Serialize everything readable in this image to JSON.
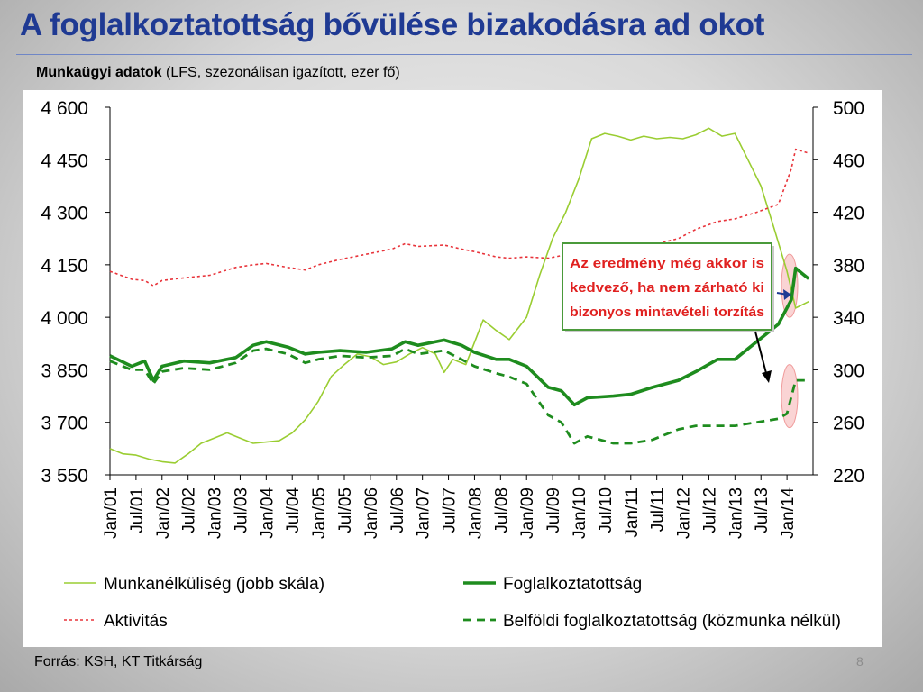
{
  "slide": {
    "title": "A foglalkoztatottság bővülése bizakodásra ad okot",
    "subtitle_bold": "Munkaügyi adatok",
    "subtitle_rest": " (LFS, szezonálisan igazított, ezer fő)",
    "source": "Forrás: KSH, KT Titkárság",
    "page_number": "8"
  },
  "chart_data": {
    "type": "line",
    "title": "",
    "xlabel": "",
    "ylabel": "",
    "x_tick_labels": [
      "Jan/01",
      "Jul/01",
      "Jan/02",
      "Jul/02",
      "Jan/03",
      "Jul/03",
      "Jan/04",
      "Jul/04",
      "Jan/05",
      "Jul/05",
      "Jan/06",
      "Jul/06",
      "Jan/07",
      "Jul/07",
      "Jan/08",
      "Jul/08",
      "Jan/09",
      "Jul/09",
      "Jan/10",
      "Jul/10",
      "Jan/11",
      "Jul/11",
      "Jan/12",
      "Jul/12",
      "Jan/13",
      "Jul/13",
      "Jan/14"
    ],
    "left_axis": {
      "ylim": [
        3550,
        4600
      ],
      "tick_labels": [
        "4 600",
        "4 450",
        "4 300",
        "4 150",
        "4 000",
        "3 850",
        "3 700",
        "3 550"
      ],
      "tick_values": [
        4600,
        4450,
        4300,
        4150,
        4000,
        3850,
        3700,
        3550
      ]
    },
    "right_axis": {
      "ylim": [
        220,
        500
      ],
      "tick_labels": [
        "500",
        "460",
        "420",
        "380",
        "340",
        "300",
        "260",
        "220"
      ],
      "tick_values": [
        500,
        460,
        420,
        380,
        340,
        300,
        260,
        220
      ]
    },
    "series": [
      {
        "name": "Munkanélküliség (jobb skála)",
        "axis": "right",
        "color": "#9acd32",
        "style": "solid",
        "points": [
          [
            "2001-01",
            240
          ],
          [
            "2001-04",
            236
          ],
          [
            "2001-07",
            235
          ],
          [
            "2001-10",
            232
          ],
          [
            "2002-01",
            230
          ],
          [
            "2002-04",
            229
          ],
          [
            "2002-07",
            236
          ],
          [
            "2002-10",
            244
          ],
          [
            "2003-01",
            248
          ],
          [
            "2003-04",
            252
          ],
          [
            "2003-07",
            248
          ],
          [
            "2003-10",
            244
          ],
          [
            "2004-01",
            245
          ],
          [
            "2004-04",
            246
          ],
          [
            "2004-07",
            252
          ],
          [
            "2004-10",
            262
          ],
          [
            "2005-01",
            276
          ],
          [
            "2005-04",
            295
          ],
          [
            "2005-07",
            304
          ],
          [
            "2005-10",
            312
          ],
          [
            "2006-01",
            310
          ],
          [
            "2006-04",
            304
          ],
          [
            "2006-07",
            306
          ],
          [
            "2006-10",
            312
          ],
          [
            "2007-01",
            317
          ],
          [
            "2007-04",
            312
          ],
          [
            "2007-06",
            298
          ],
          [
            "2007-08",
            308
          ],
          [
            "2007-11",
            304
          ],
          [
            "2008-03",
            338
          ],
          [
            "2008-06",
            330
          ],
          [
            "2008-09",
            323
          ],
          [
            "2009-01",
            340
          ],
          [
            "2009-04",
            372
          ],
          [
            "2009-07",
            400
          ],
          [
            "2009-10",
            420
          ],
          [
            "2010-01",
            445
          ],
          [
            "2010-04",
            476
          ],
          [
            "2010-07",
            480
          ],
          [
            "2010-10",
            478
          ],
          [
            "2011-01",
            475
          ],
          [
            "2011-04",
            478
          ],
          [
            "2011-07",
            476
          ],
          [
            "2011-10",
            477
          ],
          [
            "2012-01",
            476
          ],
          [
            "2012-04",
            479
          ],
          [
            "2012-07",
            484
          ],
          [
            "2012-10",
            478
          ],
          [
            "2013-01",
            480
          ],
          [
            "2013-04",
            460
          ],
          [
            "2013-07",
            440
          ],
          [
            "2013-10",
            408
          ],
          [
            "2014-01",
            375
          ],
          [
            "2014-03",
            347
          ],
          [
            "2014-06",
            352
          ]
        ]
      },
      {
        "name": "Foglalkoztatottság",
        "axis": "left",
        "color": "#1e8c1e",
        "style": "solid-thick",
        "points": [
          [
            "2001-01",
            3890
          ],
          [
            "2001-06",
            3860
          ],
          [
            "2001-09",
            3875
          ],
          [
            "2001-11",
            3820
          ],
          [
            "2002-01",
            3860
          ],
          [
            "2002-06",
            3875
          ],
          [
            "2002-12",
            3870
          ],
          [
            "2003-06",
            3885
          ],
          [
            "2003-10",
            3920
          ],
          [
            "2004-01",
            3930
          ],
          [
            "2004-06",
            3915
          ],
          [
            "2004-10",
            3895
          ],
          [
            "2005-01",
            3900
          ],
          [
            "2005-06",
            3905
          ],
          [
            "2005-12",
            3900
          ],
          [
            "2006-06",
            3910
          ],
          [
            "2006-09",
            3930
          ],
          [
            "2006-12",
            3920
          ],
          [
            "2007-06",
            3935
          ],
          [
            "2007-10",
            3920
          ],
          [
            "2008-01",
            3900
          ],
          [
            "2008-06",
            3880
          ],
          [
            "2008-09",
            3880
          ],
          [
            "2009-01",
            3860
          ],
          [
            "2009-06",
            3800
          ],
          [
            "2009-09",
            3790
          ],
          [
            "2009-12",
            3750
          ],
          [
            "2010-03",
            3770
          ],
          [
            "2010-09",
            3775
          ],
          [
            "2011-01",
            3780
          ],
          [
            "2011-06",
            3800
          ],
          [
            "2011-12",
            3820
          ],
          [
            "2012-04",
            3845
          ],
          [
            "2012-09",
            3880
          ],
          [
            "2013-01",
            3880
          ],
          [
            "2013-06",
            3930
          ],
          [
            "2013-11",
            3980
          ],
          [
            "2014-02",
            4050
          ],
          [
            "2014-03",
            4140
          ],
          [
            "2014-06",
            4110
          ]
        ]
      },
      {
        "name": "Aktivitás",
        "axis": "right",
        "color": "#e8333a",
        "style": "dotted",
        "points": [
          [
            "2001-01",
            375
          ],
          [
            "2001-06",
            369
          ],
          [
            "2001-09",
            368
          ],
          [
            "2001-11",
            364
          ],
          [
            "2002-01",
            368
          ],
          [
            "2002-06",
            370
          ],
          [
            "2002-12",
            372
          ],
          [
            "2003-06",
            378
          ],
          [
            "2003-10",
            380
          ],
          [
            "2004-01",
            381
          ],
          [
            "2004-06",
            378
          ],
          [
            "2004-10",
            376
          ],
          [
            "2005-01",
            380
          ],
          [
            "2005-06",
            384
          ],
          [
            "2005-12",
            388
          ],
          [
            "2006-06",
            392
          ],
          [
            "2006-09",
            396
          ],
          [
            "2006-12",
            394
          ],
          [
            "2007-06",
            395
          ],
          [
            "2007-10",
            392
          ],
          [
            "2008-01",
            390
          ],
          [
            "2008-06",
            386
          ],
          [
            "2008-09",
            385
          ],
          [
            "2009-01",
            386
          ],
          [
            "2009-06",
            385
          ],
          [
            "2009-09",
            387
          ],
          [
            "2009-12",
            387
          ],
          [
            "2010-03",
            385
          ],
          [
            "2010-09",
            387
          ],
          [
            "2011-01",
            389
          ],
          [
            "2011-06",
            395
          ],
          [
            "2011-12",
            400
          ],
          [
            "2012-04",
            407
          ],
          [
            "2012-09",
            413
          ],
          [
            "2013-01",
            415
          ],
          [
            "2013-06",
            420
          ],
          [
            "2013-11",
            426
          ],
          [
            "2014-02",
            453
          ],
          [
            "2014-03",
            468
          ],
          [
            "2014-06",
            465
          ]
        ]
      },
      {
        "name": "Belföldi foglalkoztatottság (közmunka nélkül)",
        "axis": "left",
        "color": "#1e8c1e",
        "style": "dashed",
        "points": [
          [
            "2001-01",
            3875
          ],
          [
            "2001-06",
            3850
          ],
          [
            "2001-09",
            3850
          ],
          [
            "2001-11",
            3810
          ],
          [
            "2002-01",
            3845
          ],
          [
            "2002-06",
            3855
          ],
          [
            "2002-12",
            3850
          ],
          [
            "2003-06",
            3870
          ],
          [
            "2003-10",
            3905
          ],
          [
            "2004-01",
            3910
          ],
          [
            "2004-06",
            3895
          ],
          [
            "2004-10",
            3870
          ],
          [
            "2005-01",
            3880
          ],
          [
            "2005-06",
            3890
          ],
          [
            "2005-12",
            3885
          ],
          [
            "2006-06",
            3890
          ],
          [
            "2006-09",
            3910
          ],
          [
            "2006-12",
            3895
          ],
          [
            "2007-06",
            3905
          ],
          [
            "2007-10",
            3880
          ],
          [
            "2008-01",
            3860
          ],
          [
            "2008-06",
            3840
          ],
          [
            "2008-09",
            3830
          ],
          [
            "2009-01",
            3810
          ],
          [
            "2009-06",
            3720
          ],
          [
            "2009-09",
            3700
          ],
          [
            "2009-12",
            3640
          ],
          [
            "2010-03",
            3660
          ],
          [
            "2010-09",
            3640
          ],
          [
            "2011-01",
            3640
          ],
          [
            "2011-06",
            3650
          ],
          [
            "2011-12",
            3680
          ],
          [
            "2012-04",
            3690
          ],
          [
            "2012-09",
            3690
          ],
          [
            "2013-01",
            3690
          ],
          [
            "2013-06",
            3700
          ],
          [
            "2013-11",
            3710
          ],
          [
            "2014-01",
            3725
          ],
          [
            "2014-03",
            3820
          ],
          [
            "2014-06",
            3820
          ]
        ]
      }
    ],
    "legend": {
      "placement": "bottom"
    },
    "grid": false,
    "annotation": {
      "text_lines": [
        "Az eredmény még akkor is",
        "kedvező, ha nem zárható ki",
        "bizonyos mintavételi torzítás"
      ],
      "border_color": "#4a9a3a",
      "text_color": "#e0201f"
    },
    "highlight_color": "#f7b8b8"
  }
}
